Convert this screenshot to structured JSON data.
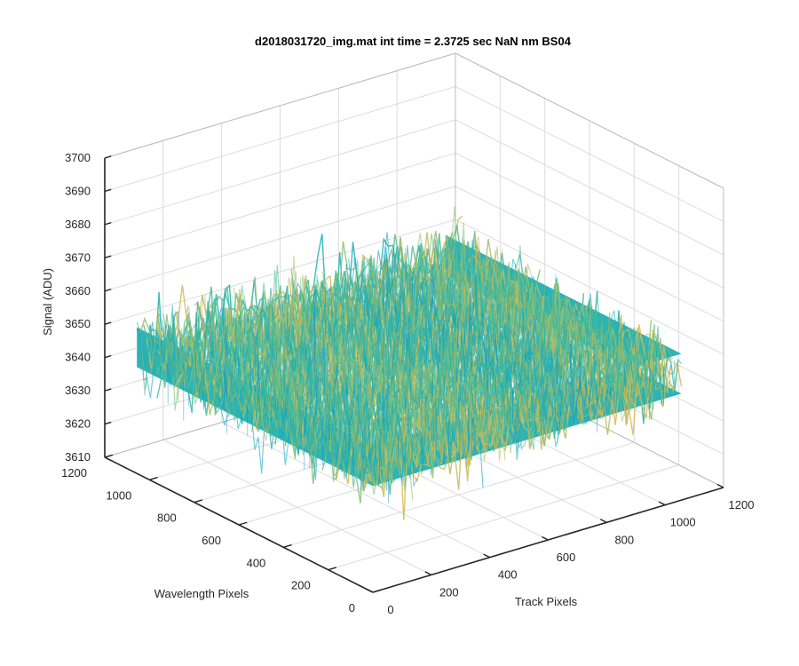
{
  "chart_data": {
    "type": "surface",
    "title": "d2018031720_img.mat int time = 2.3725 sec  NaN nm BS04",
    "xlabel": "Track Pixels",
    "ylabel": "Wavelength Pixels",
    "zlabel": "Signal (ADU)",
    "xlim": [
      0,
      1200
    ],
    "ylim": [
      0,
      1200
    ],
    "zlim": [
      3610,
      3700
    ],
    "xticks": [
      "0",
      "200",
      "400",
      "600",
      "800",
      "1000",
      "1200"
    ],
    "yticks": [
      "0",
      "200",
      "400",
      "600",
      "800",
      "1000",
      "1200"
    ],
    "zticks": [
      "3610",
      "3620",
      "3630",
      "3640",
      "3650",
      "3660",
      "3670",
      "3680",
      "3690",
      "3700"
    ],
    "grid": true,
    "colormap": "parula",
    "surface_extent": {
      "x": [
        0,
        1056
      ],
      "y": [
        0,
        1056
      ]
    },
    "signal_mean": 3648,
    "signal_range": [
      3612,
      3692
    ]
  }
}
